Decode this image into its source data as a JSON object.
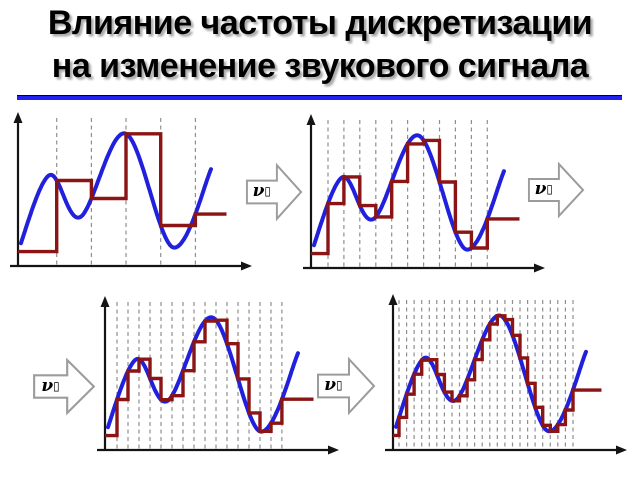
{
  "title": {
    "line1": "Влияние частоты дискретизации",
    "line2": "на изменение звукового сигнала"
  },
  "colors": {
    "title_text": "#000000",
    "title_shadow": "#a8a8a8",
    "title_underline": "#2121f0",
    "wave": "#2020dd",
    "staircase": "#8b1414",
    "axis": "#141414",
    "gridline": "#8f8f8f",
    "arrow_fill": "#ffffff",
    "arrow_outline": "#9c9c9c"
  },
  "arrows": [
    {
      "nu": "ν",
      "box": "▯"
    },
    {
      "nu": "ν",
      "box": "▯"
    },
    {
      "nu": "ν",
      "box": "▯"
    },
    {
      "nu": "ν",
      "box": "▯"
    }
  ],
  "chart_data": {
    "type": "line",
    "title": "",
    "xlabel": "",
    "ylabel": "",
    "grid": "dashed-vertical",
    "legend": "none",
    "axis_ticks": "none",
    "wave_keypoints_t_v": [
      [
        0.0,
        0.1
      ],
      [
        0.145,
        0.63
      ],
      [
        0.29,
        0.34
      ],
      [
        0.5,
        0.92
      ],
      [
        0.72,
        0.13
      ],
      [
        0.9,
        0.68
      ]
    ],
    "wave_t_start": 0.012,
    "wave_t_end": 0.9,
    "staircase_hold_end_t": 0.97,
    "series": [
      {
        "name": "analog-signal",
        "style": "smooth-curve"
      },
      {
        "name": "sampled-signal",
        "style": "sample-and-hold-staircase"
      }
    ],
    "charts": [
      {
        "name": "sampling-rate-1",
        "gridline_count": 5,
        "t_first_sample": 0.18,
        "t_last_sample": 0.825
      },
      {
        "name": "sampling-rate-2",
        "gridline_count": 11,
        "t_first_sample": 0.079,
        "t_last_sample": 0.82
      },
      {
        "name": "sampling-rate-3",
        "gridline_count": 16,
        "t_first_sample": 0.056,
        "t_last_sample": 0.823
      },
      {
        "name": "sampling-rate-4",
        "gridline_count": 24,
        "t_first_sample": 0.028,
        "t_last_sample": 0.837
      }
    ]
  }
}
